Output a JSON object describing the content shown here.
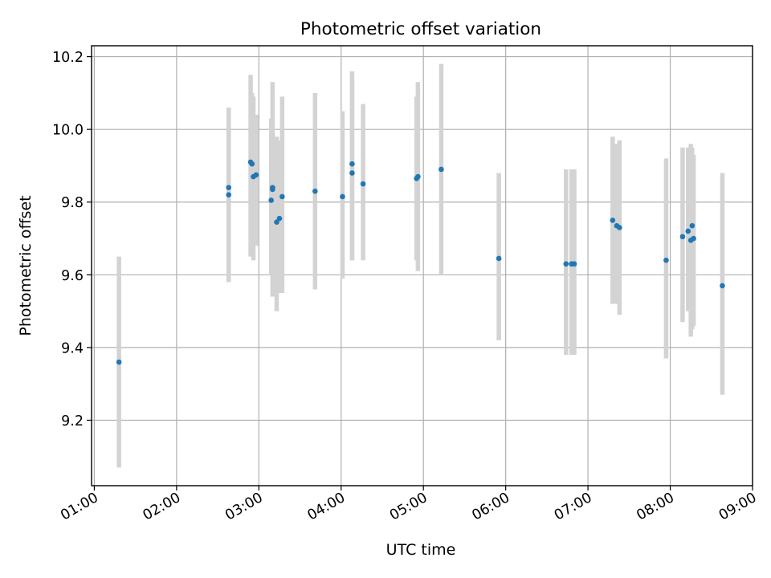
{
  "chart_data": {
    "type": "scatter",
    "title": "Photometric offset variation",
    "xlabel": "UTC time",
    "ylabel": "Photometric offset",
    "x_tick_labels": [
      "01:00",
      "02:00",
      "03:00",
      "04:00",
      "05:00",
      "06:00",
      "07:00",
      "08:00",
      "09:00"
    ],
    "y_tick_labels": [
      "9.2",
      "9.4",
      "9.6",
      "9.8",
      "10.0",
      "10.2"
    ],
    "xlim": [
      "00:58",
      "09:00"
    ],
    "ylim": [
      9.02,
      10.23
    ],
    "grid": true,
    "errorbar_color": "#d3d3d3",
    "marker_color": "#1f77b4",
    "points": [
      {
        "t": "01:18",
        "y": 9.36,
        "lo": 9.07,
        "hi": 9.65
      },
      {
        "t": "02:38",
        "y": 9.84,
        "lo": 9.69,
        "hi": 10.06
      },
      {
        "t": "02:38",
        "y": 9.82,
        "lo": 9.58,
        "hi": 10.01
      },
      {
        "t": "02:54",
        "y": 9.91,
        "lo": 9.65,
        "hi": 10.15
      },
      {
        "t": "02:55",
        "y": 9.905,
        "lo": 9.7,
        "hi": 10.1
      },
      {
        "t": "02:56",
        "y": 9.87,
        "lo": 9.64,
        "hi": 10.09
      },
      {
        "t": "02:58",
        "y": 9.875,
        "lo": 9.68,
        "hi": 10.04
      },
      {
        "t": "03:09",
        "y": 9.805,
        "lo": 9.6,
        "hi": 10.03
      },
      {
        "t": "03:10",
        "y": 9.84,
        "lo": 9.54,
        "hi": 10.13
      },
      {
        "t": "03:10",
        "y": 9.835,
        "lo": 9.62,
        "hi": 10.02
      },
      {
        "t": "03:13",
        "y": 9.745,
        "lo": 9.5,
        "hi": 9.98
      },
      {
        "t": "03:15",
        "y": 9.755,
        "lo": 9.55,
        "hi": 9.97
      },
      {
        "t": "03:17",
        "y": 9.815,
        "lo": 9.55,
        "hi": 10.09
      },
      {
        "t": "03:41",
        "y": 9.83,
        "lo": 9.56,
        "hi": 10.1
      },
      {
        "t": "04:01",
        "y": 9.815,
        "lo": 9.59,
        "hi": 10.05
      },
      {
        "t": "04:08",
        "y": 9.905,
        "lo": 9.64,
        "hi": 10.16
      },
      {
        "t": "04:08",
        "y": 9.88,
        "lo": 9.64,
        "hi": 10.14
      },
      {
        "t": "04:16",
        "y": 9.85,
        "lo": 9.64,
        "hi": 10.07
      },
      {
        "t": "04:55",
        "y": 9.865,
        "lo": 9.64,
        "hi": 10.09
      },
      {
        "t": "04:56",
        "y": 9.87,
        "lo": 9.61,
        "hi": 10.13
      },
      {
        "t": "05:13",
        "y": 9.89,
        "lo": 9.6,
        "hi": 10.18
      },
      {
        "t": "05:55",
        "y": 9.645,
        "lo": 9.42,
        "hi": 9.88
      },
      {
        "t": "06:44",
        "y": 9.63,
        "lo": 9.38,
        "hi": 9.89
      },
      {
        "t": "06:48",
        "y": 9.63,
        "lo": 9.38,
        "hi": 9.89
      },
      {
        "t": "06:50",
        "y": 9.63,
        "lo": 9.38,
        "hi": 9.89
      },
      {
        "t": "07:18",
        "y": 9.75,
        "lo": 9.52,
        "hi": 9.98
      },
      {
        "t": "07:21",
        "y": 9.735,
        "lo": 9.52,
        "hi": 9.96
      },
      {
        "t": "07:23",
        "y": 9.73,
        "lo": 9.49,
        "hi": 9.97
      },
      {
        "t": "07:57",
        "y": 9.64,
        "lo": 9.37,
        "hi": 9.92
      },
      {
        "t": "08:09",
        "y": 9.705,
        "lo": 9.47,
        "hi": 9.95
      },
      {
        "t": "08:13",
        "y": 9.72,
        "lo": 9.5,
        "hi": 9.95
      },
      {
        "t": "08:15",
        "y": 9.695,
        "lo": 9.43,
        "hi": 9.96
      },
      {
        "t": "08:16",
        "y": 9.735,
        "lo": 9.45,
        "hi": 9.95
      },
      {
        "t": "08:17",
        "y": 9.7,
        "lo": 9.46,
        "hi": 9.93
      },
      {
        "t": "08:38",
        "y": 9.57,
        "lo": 9.27,
        "hi": 9.88
      }
    ]
  }
}
